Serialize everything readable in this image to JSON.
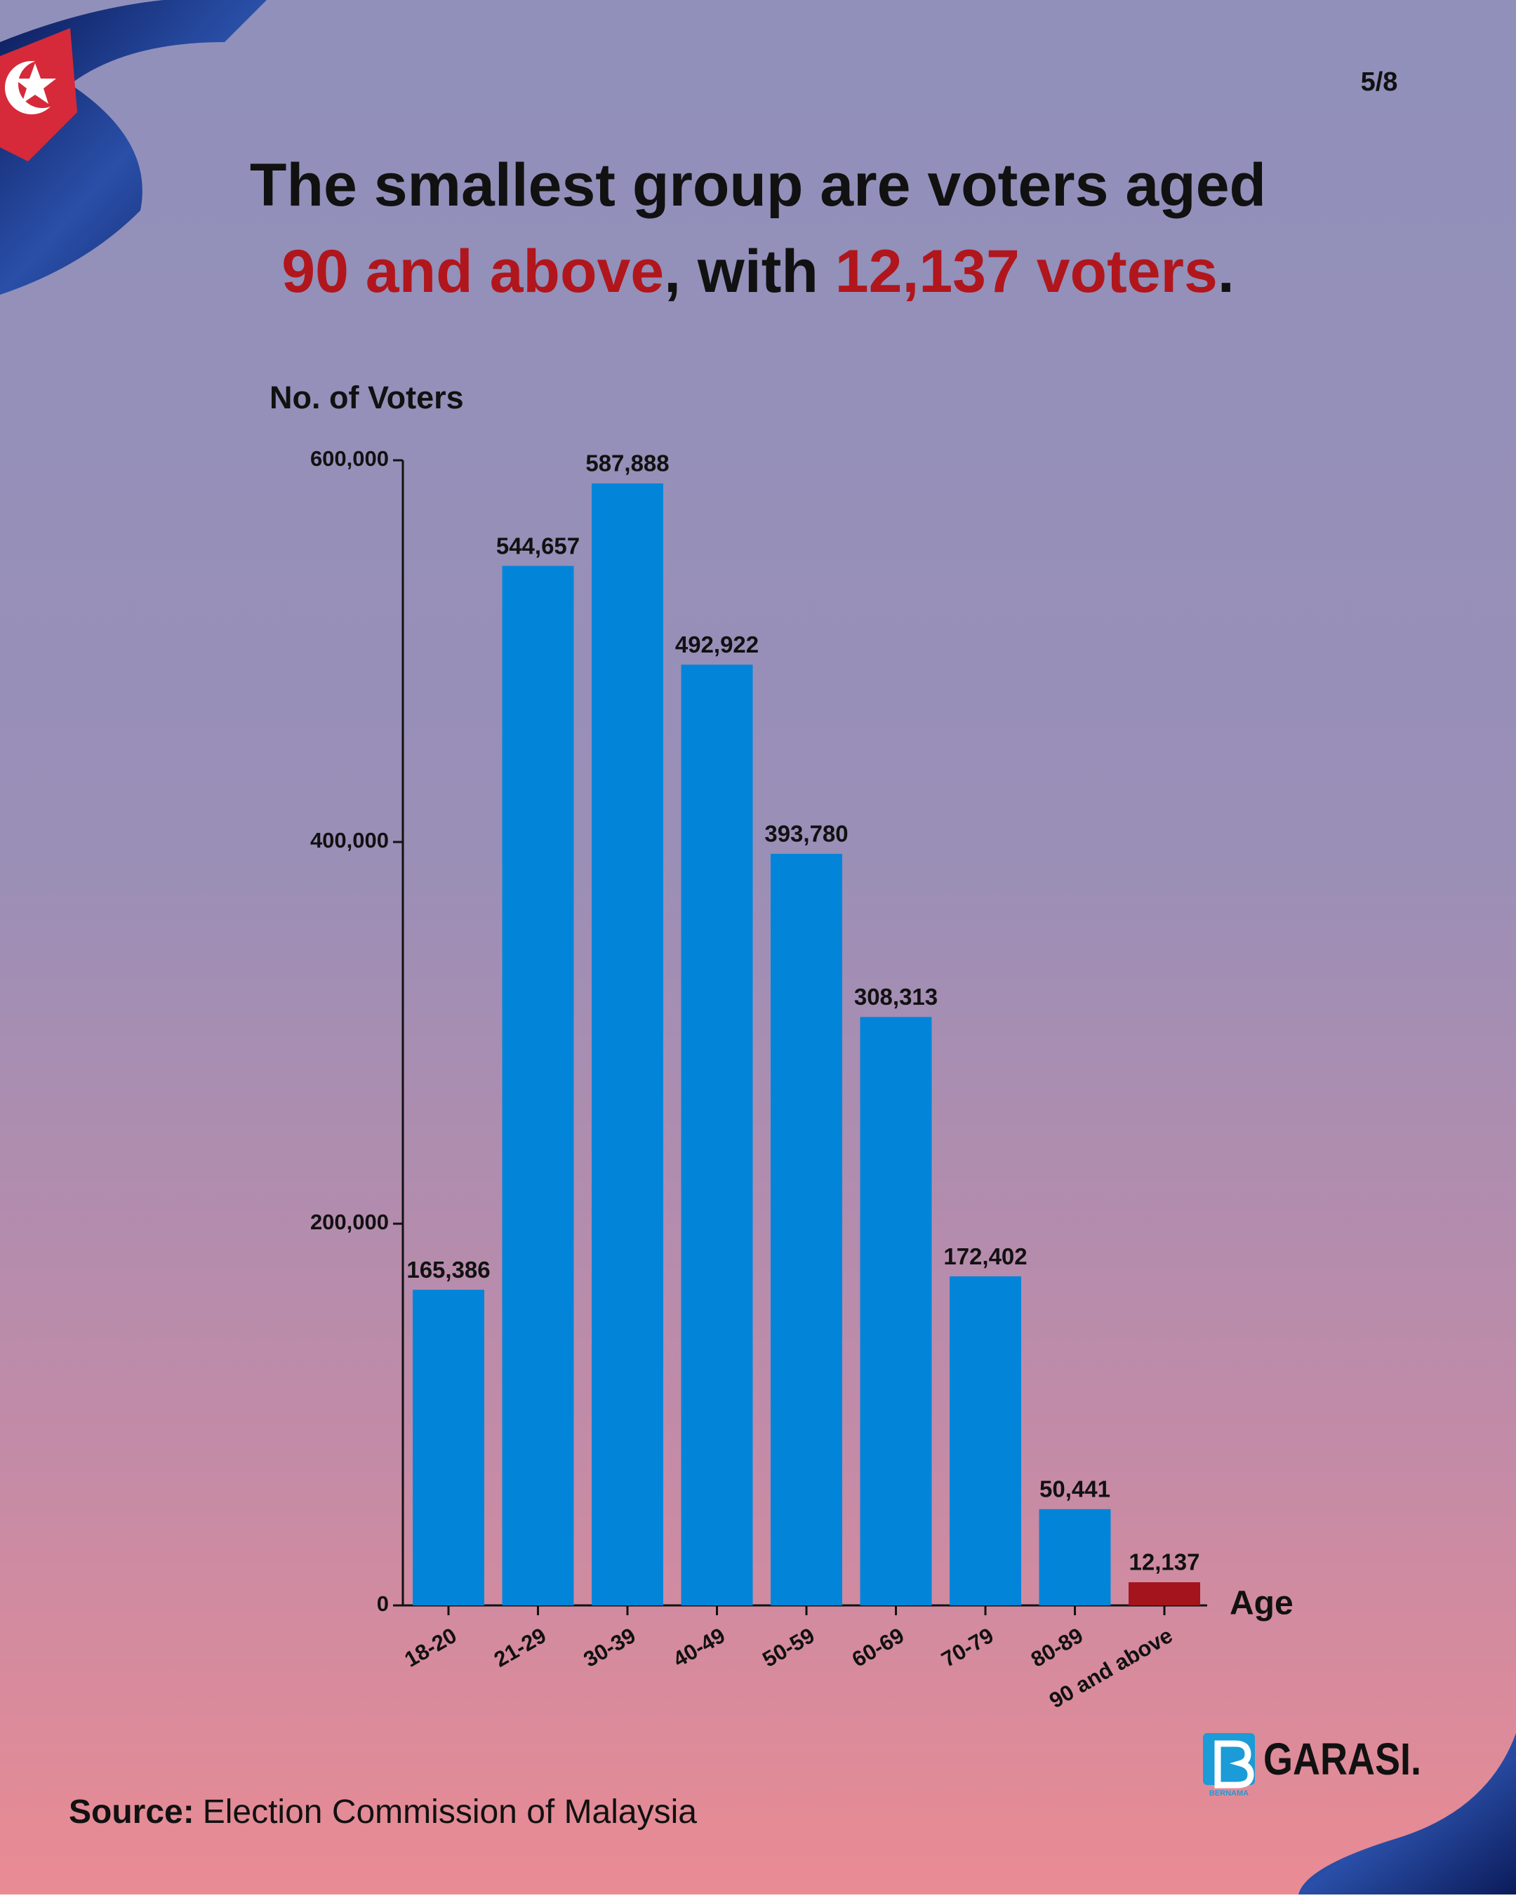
{
  "page": "5/8",
  "chart_data": {
    "type": "bar",
    "title_lines": [
      [
        {
          "text": "The smallest group are voters aged",
          "color": "#111111"
        }
      ],
      [
        {
          "text": "90 and above",
          "color": "#b0161c"
        },
        {
          "text": ", with ",
          "color": "#111111"
        },
        {
          "text": "12,137 voters",
          "color": "#b0161c"
        },
        {
          "text": ".",
          "color": "#111111"
        }
      ]
    ],
    "y_label": "No. of Voters",
    "x_label": "Age",
    "categories": [
      "18-20",
      "21-29",
      "30-39",
      "40-49",
      "50-59",
      "60-69",
      "70-79",
      "80-89",
      "90 and above"
    ],
    "values": [
      165386,
      544657,
      587888,
      492922,
      393780,
      308313,
      172402,
      50441,
      12137
    ],
    "value_labels": [
      "165,386",
      "544,657",
      "587,888",
      "492,922",
      "393,780",
      "308,313",
      "172,402",
      "50,441",
      "12,137"
    ],
    "colors": [
      "#0285d9",
      "#0285d9",
      "#0285d9",
      "#0285d9",
      "#0285d9",
      "#0285d9",
      "#0285d9",
      "#0285d9",
      "#a3141c"
    ],
    "ylim": [
      0,
      600000
    ],
    "yticks": [
      0,
      {
        "value": 200000,
        "label": "200,000"
      },
      {
        "value": 400000,
        "label": "400,000"
      },
      {
        "value": 600000,
        "label": "600,000"
      }
    ]
  },
  "footer": {
    "source_label": "Source:",
    "source": "Election Commission of Malaysia"
  },
  "logo": {
    "name": "GARASI.",
    "sub": "BERNAMA"
  }
}
